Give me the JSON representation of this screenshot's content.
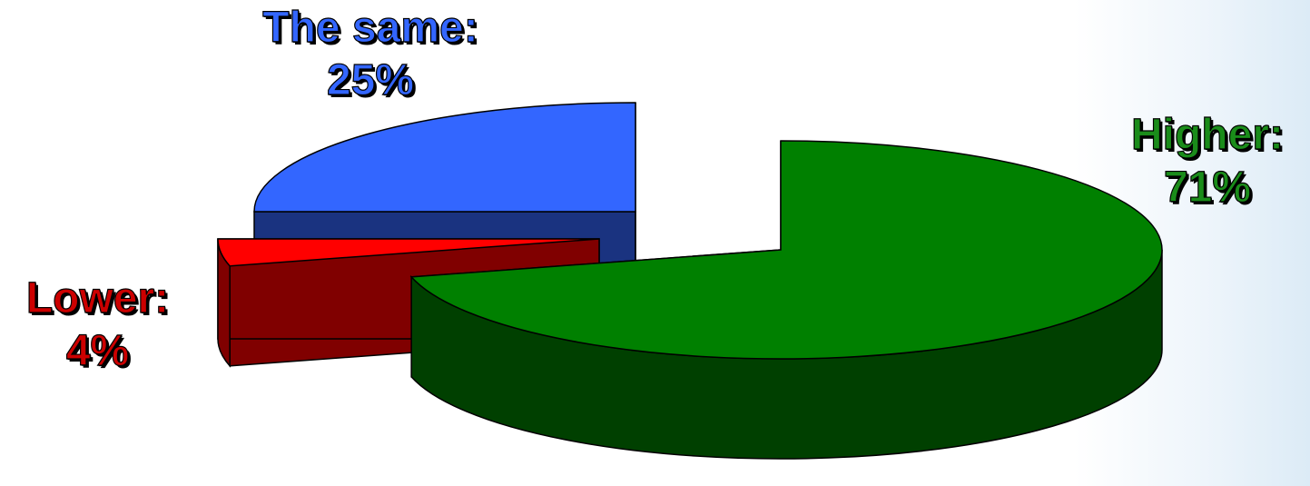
{
  "chart_data": {
    "type": "pie",
    "style": "3d-exploded",
    "title": "",
    "slices": [
      {
        "name": "The same",
        "label": "The same:",
        "value": 25,
        "value_label": "25%",
        "color": "#3366ff",
        "side_color": "#1a3380",
        "label_color": "#3366ff"
      },
      {
        "name": "Higher",
        "label": "Higher:",
        "value": 71,
        "value_label": "71%",
        "color": "#008000",
        "side_color": "#004000",
        "label_color": "#1a8c1a"
      },
      {
        "name": "Lower",
        "label": "Lower:",
        "value": 4,
        "value_label": "4%",
        "color": "#ff0000",
        "side_color": "#800000",
        "label_color": "#cc0000"
      }
    ],
    "legend": "none"
  }
}
